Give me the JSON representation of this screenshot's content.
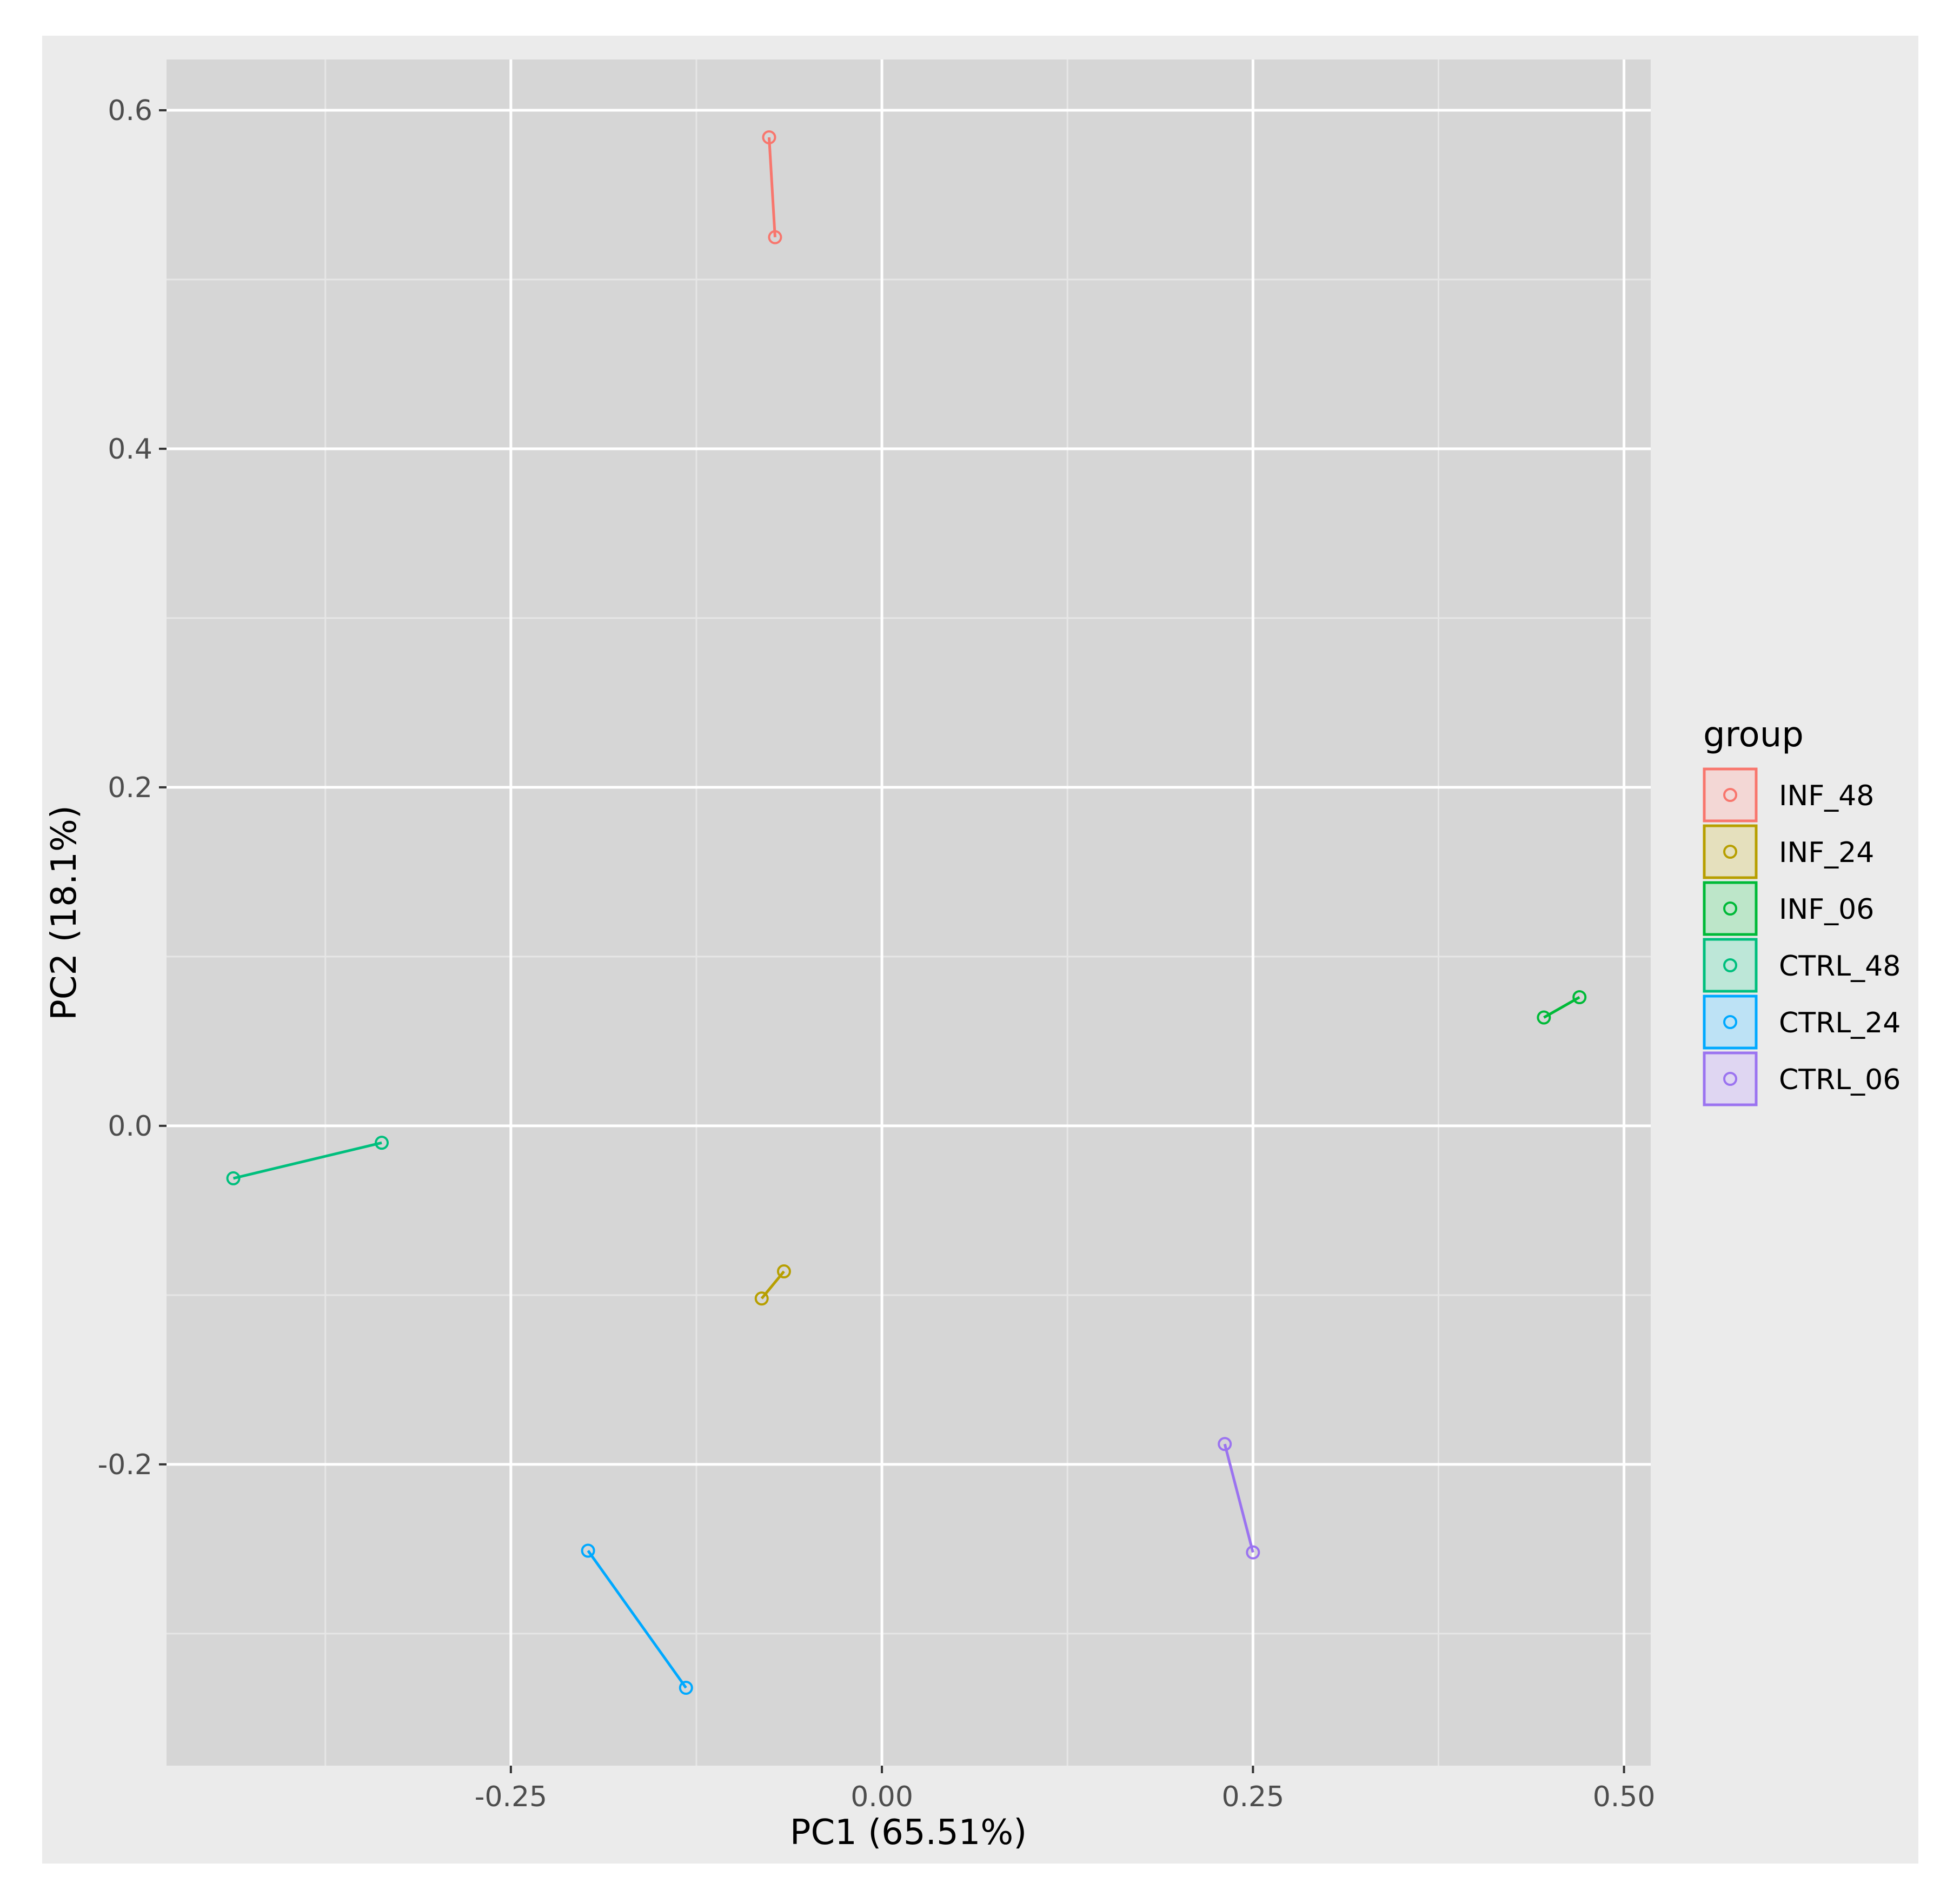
{
  "chart_data": {
    "type": "scatter",
    "xlabel": "PC1 (65.51%)",
    "ylabel": "PC2 (18.1%)",
    "xlim": [
      -0.482,
      0.518
    ],
    "ylim": [
      -0.378,
      0.63
    ],
    "x_ticks": [
      -0.25,
      0.0,
      0.25,
      0.5
    ],
    "x_tick_labels": [
      "-0.25",
      "0.00",
      "0.25",
      "0.50"
    ],
    "y_ticks": [
      -0.2,
      0.0,
      0.2,
      0.4,
      0.6
    ],
    "y_tick_labels": [
      "-0.2",
      "0.0",
      "0.2",
      "0.4",
      "0.6"
    ],
    "grid": true,
    "legend": {
      "title": "group",
      "position": "right"
    },
    "series": [
      {
        "name": "INF_48",
        "color": "#F8766D",
        "points": [
          [
            -0.076,
            0.584
          ],
          [
            -0.072,
            0.525
          ]
        ]
      },
      {
        "name": "INF_24",
        "color": "#B79F00",
        "points": [
          [
            -0.081,
            -0.102
          ],
          [
            -0.066,
            -0.086
          ]
        ]
      },
      {
        "name": "INF_06",
        "color": "#00BA38",
        "points": [
          [
            0.446,
            0.064
          ],
          [
            0.47,
            0.076
          ]
        ]
      },
      {
        "name": "CTRL_48",
        "color": "#00BF7D",
        "points": [
          [
            -0.437,
            -0.031
          ],
          [
            -0.337,
            -0.01
          ]
        ]
      },
      {
        "name": "CTRL_24",
        "color": "#00A9FF",
        "points": [
          [
            -0.198,
            -0.251
          ],
          [
            -0.132,
            -0.332
          ]
        ]
      },
      {
        "name": "CTRL_06",
        "color": "#9B73F0",
        "points": [
          [
            0.231,
            -0.188
          ],
          [
            0.25,
            -0.252
          ]
        ]
      }
    ]
  }
}
